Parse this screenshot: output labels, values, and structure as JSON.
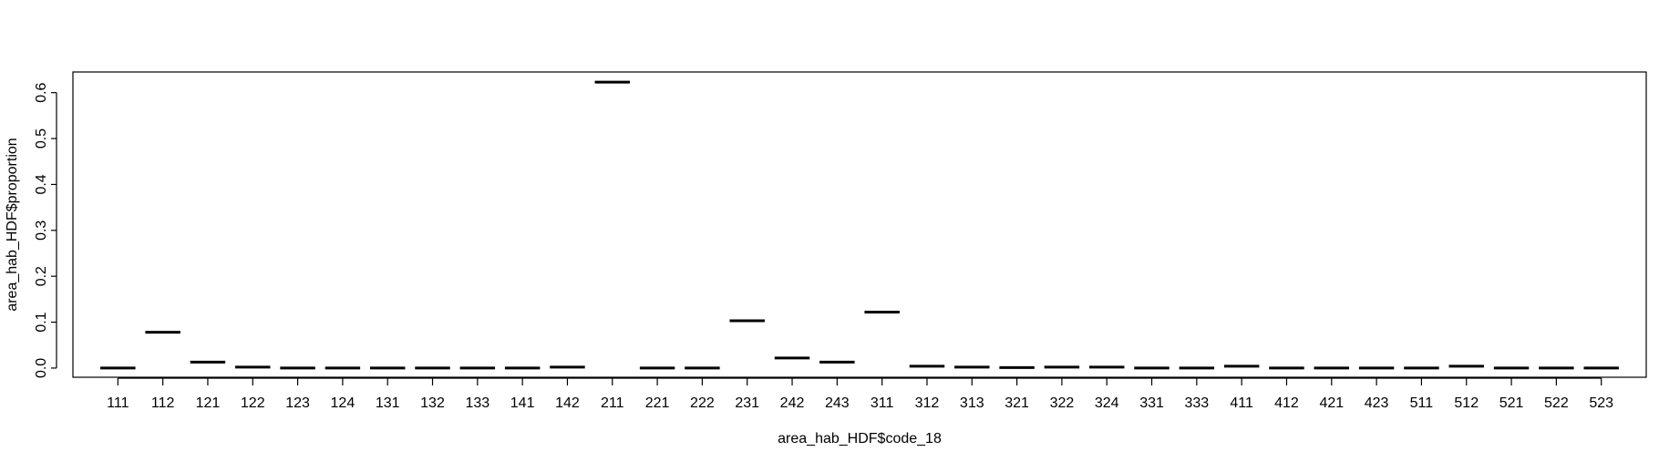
{
  "chart_data": {
    "type": "boxplot",
    "title": "",
    "xlabel": "area_hab_HDF$code_18",
    "ylabel": "area_hab_HDF$proportion",
    "ylim": [
      -0.02,
      0.645
    ],
    "yticks": [
      0.0,
      0.1,
      0.2,
      0.3,
      0.4,
      0.5,
      0.6
    ],
    "ytick_labels": [
      "0.0",
      "0.1",
      "0.2",
      "0.3",
      "0.4",
      "0.5",
      "0.6"
    ],
    "grid": false,
    "legend": "none",
    "categories": [
      "111",
      "112",
      "121",
      "122",
      "123",
      "124",
      "131",
      "132",
      "133",
      "141",
      "142",
      "211",
      "221",
      "222",
      "231",
      "242",
      "243",
      "311",
      "312",
      "313",
      "321",
      "322",
      "324",
      "331",
      "333",
      "411",
      "412",
      "421",
      "423",
      "511",
      "512",
      "521",
      "522",
      "523"
    ],
    "values": [
      0.0,
      0.078,
      0.013,
      0.002,
      0.0,
      0.0,
      0.0,
      0.0,
      0.0,
      0.0,
      0.002,
      0.623,
      0.0,
      0.0,
      0.103,
      0.022,
      0.013,
      0.122,
      0.004,
      0.002,
      0.001,
      0.002,
      0.002,
      0.0,
      0.0,
      0.004,
      0.0,
      0.0,
      0.0,
      0.0,
      0.004,
      0.0,
      0.0,
      0.0
    ]
  },
  "colors": {
    "mark": "#000000",
    "axis": "#000000",
    "background": "#ffffff"
  }
}
